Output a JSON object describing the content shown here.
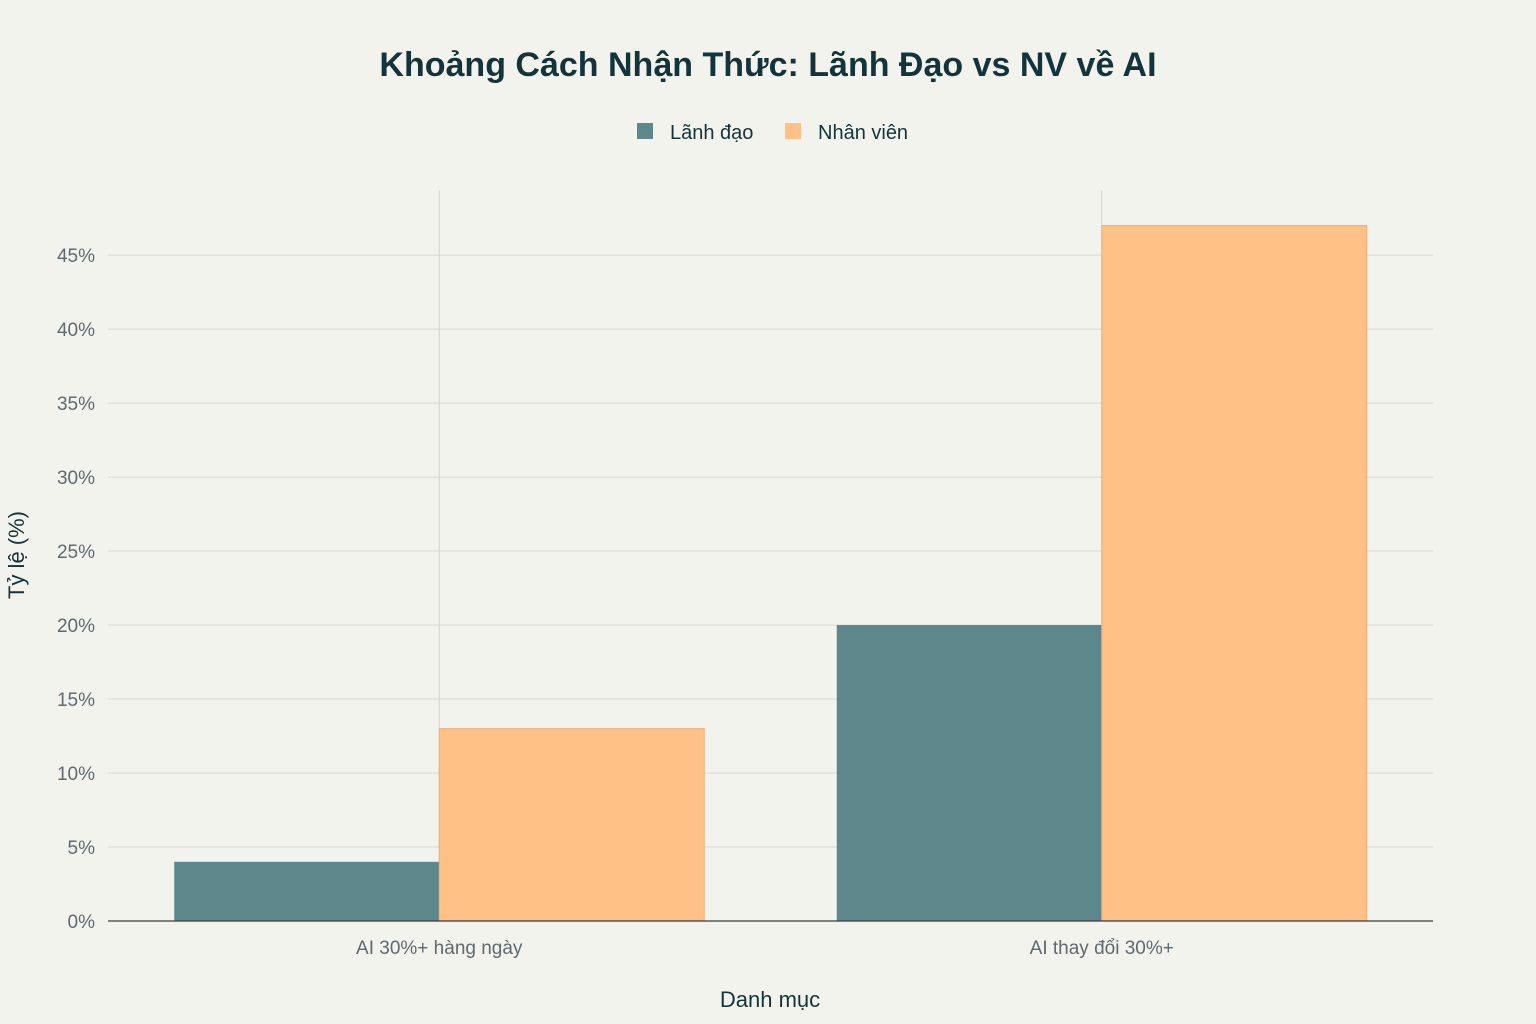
{
  "chart_data": {
    "type": "bar",
    "title": "Khoảng Cách Nhận Thức: Lãnh Đạo vs NV về AI",
    "xlabel": "Danh mục",
    "ylabel": "Tỷ lệ (%)",
    "categories": [
      "AI 30%+ hàng ngày",
      "AI thay đổi 30%+"
    ],
    "series": [
      {
        "name": "Lãnh đạo",
        "values": [
          4,
          20
        ],
        "color": "#5E878C"
      },
      {
        "name": "Nhân viên",
        "values": [
          13,
          47
        ],
        "color": "#FFC186"
      }
    ],
    "ylim": [
      0,
      49.4
    ],
    "yticks": [
      0,
      5,
      10,
      15,
      20,
      25,
      30,
      35,
      40,
      45
    ],
    "ytick_suffix": "%",
    "grid": true,
    "legend_position": "top-center"
  }
}
